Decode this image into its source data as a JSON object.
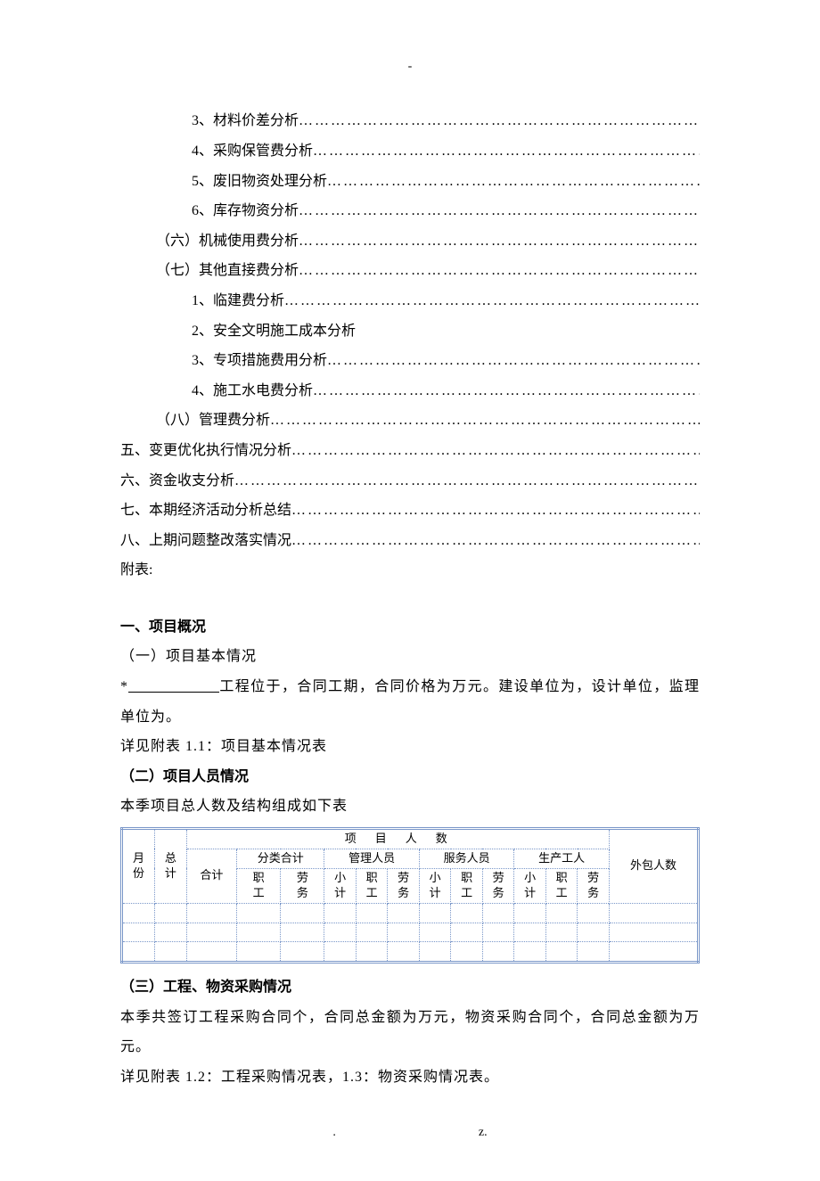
{
  "page_marker_top": "-",
  "toc": [
    {
      "indent": 2,
      "label": "3、材料价差分析",
      "dots": true
    },
    {
      "indent": 2,
      "label": "4、采购保管费分析",
      "dots": true
    },
    {
      "indent": 2,
      "label": "5、废旧物资处理分析",
      "dots": true
    },
    {
      "indent": 2,
      "label": "6、库存物资分析",
      "dots": true
    },
    {
      "indent": 1,
      "label": "（六）机械使用费分析",
      "dots": true
    },
    {
      "indent": 1,
      "label": "（七）其他直接费分析",
      "dots": true
    },
    {
      "indent": 2,
      "label": "1、临建费分析",
      "dots": true
    },
    {
      "indent": 2,
      "label": "2、安全文明施工成本分析",
      "dots": false
    },
    {
      "indent": 2,
      "label": "3、专项措施费用分析",
      "dots": true
    },
    {
      "indent": 2,
      "label": "4、施工水电费分析",
      "dots": true
    },
    {
      "indent": 1,
      "label": "（八）管理费分析",
      "dots": true
    },
    {
      "indent": 0,
      "label": "五、变更优化执行情况分析",
      "dots": true
    },
    {
      "indent": 0,
      "label": "六、资金收支分析",
      "dots": true
    },
    {
      "indent": 0,
      "label": "七、本期经济活动分析总结",
      "dots": true
    },
    {
      "indent": 0,
      "label": "八、上期问题整改落实情况",
      "dots": true
    },
    {
      "indent": 0,
      "label": "附表:",
      "dots": false
    }
  ],
  "section1": {
    "heading": "一、项目概况",
    "sub1_heading": "（一）项目基本情况",
    "sub1_prefix": "*",
    "sub1_underline_spacer": "　　　　　　",
    "sub1_para": "工程位于，合同工期，合同价格为万元。建设单位为，设计单位，监理单位为。",
    "sub1_ref": "详见附表 1.1：项目基本情况表",
    "sub2_heading": "（二）项目人员情况",
    "sub2_intro": "本季项目总人数及结构组成如下表",
    "table": {
      "header_main": "项　目　人　数",
      "col_month": "月份",
      "col_total": "总计",
      "col_outsource": "外包人数",
      "col_sum": "合计",
      "col_cat_sum": "分类合计",
      "col_mgmt": "管理人员",
      "col_service": "服务人员",
      "col_prod": "生产工人",
      "sub_emp": "职工",
      "sub_labor": "劳务",
      "sub_subtotal": "小计",
      "rows": [
        [
          "",
          "",
          "",
          "",
          "",
          "",
          "",
          "",
          "",
          "",
          "",
          "",
          "",
          "",
          "",
          ""
        ],
        [
          "",
          "",
          "",
          "",
          "",
          "",
          "",
          "",
          "",
          "",
          "",
          "",
          "",
          "",
          "",
          ""
        ],
        [
          "",
          "",
          "",
          "",
          "",
          "",
          "",
          "",
          "",
          "",
          "",
          "",
          "",
          "",
          "",
          ""
        ]
      ]
    },
    "sub3_heading": "（三）工程、物资采购情况",
    "sub3_para": "本季共签订工程采购合同个，合同总金额为万元，物资采购合同个，合同总金额为万元。",
    "sub3_ref": "详见附表 1.2：工程采购情况表，1.3：物资采购情况表。"
  },
  "footer": {
    "left": ".",
    "right": "z."
  },
  "dots_fill": "……………………………………………………………………………………………………………………………………"
}
